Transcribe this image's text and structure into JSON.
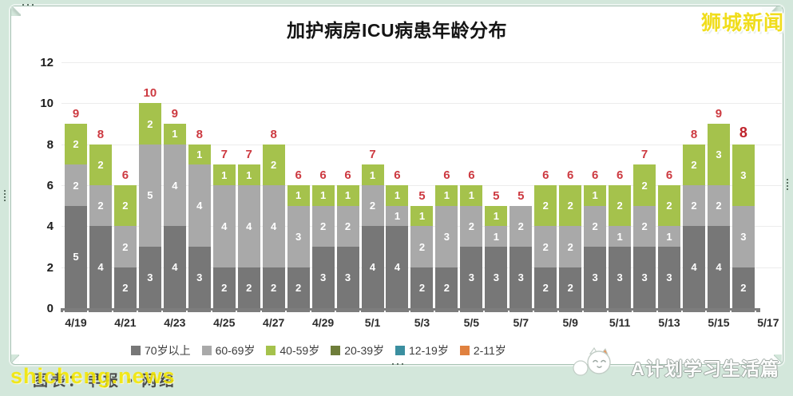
{
  "page": {
    "title": "加护病房ICU病患年龄分布",
    "brand": "狮城新闻",
    "watermark_site": "shicheng.news",
    "caption": "图表：早报 • 网络",
    "watermark_right": "A计划学习生活篇"
  },
  "chart_data": {
    "type": "bar",
    "stacked": true,
    "title": "加护病房ICU病患年龄分布",
    "grid": true,
    "legend_position": "bottom",
    "ylim": [
      0,
      12
    ],
    "yticks": [
      0,
      2,
      4,
      6,
      8,
      10,
      12
    ],
    "categories": [
      "4/19",
      "4/20",
      "4/21",
      "4/22",
      "4/23",
      "4/24",
      "4/25",
      "4/26",
      "4/27",
      "4/28",
      "4/29",
      "4/30",
      "5/1",
      "5/2",
      "5/3",
      "5/4",
      "5/5",
      "5/6",
      "5/7",
      "5/8",
      "5/9",
      "5/10",
      "5/11",
      "5/12",
      "5/13",
      "5/14",
      "5/15",
      "5/16"
    ],
    "x_tick_labels": [
      "4/19",
      "4/21",
      "4/23",
      "4/25",
      "4/27",
      "4/29",
      "5/1",
      "5/3",
      "5/5",
      "5/7",
      "5/9",
      "5/11",
      "5/13",
      "5/15",
      "5/17"
    ],
    "series": [
      {
        "name": "70岁以上",
        "color": "#777777",
        "values": [
          5,
          4,
          2,
          3,
          4,
          3,
          2,
          2,
          2,
          2,
          3,
          3,
          4,
          4,
          2,
          2,
          3,
          3,
          3,
          2,
          2,
          3,
          3,
          3,
          3,
          4,
          4,
          2
        ]
      },
      {
        "name": "60-69岁",
        "color": "#a9a9a9",
        "values": [
          2,
          2,
          2,
          5,
          4,
          4,
          4,
          4,
          4,
          3,
          2,
          2,
          2,
          1,
          2,
          3,
          2,
          1,
          2,
          2,
          2,
          2,
          1,
          2,
          1,
          2,
          2,
          3
        ]
      },
      {
        "name": "40-59岁",
        "color": "#a5c24c",
        "values": [
          2,
          2,
          2,
          2,
          1,
          1,
          1,
          1,
          2,
          1,
          1,
          1,
          1,
          1,
          1,
          1,
          1,
          1,
          0,
          2,
          2,
          1,
          2,
          2,
          2,
          2,
          3,
          3
        ]
      },
      {
        "name": "20-39岁",
        "color": "#6e7d3a",
        "values": [
          0,
          0,
          0,
          0,
          0,
          0,
          0,
          0,
          0,
          0,
          0,
          0,
          0,
          0,
          0,
          0,
          0,
          0,
          0,
          0,
          0,
          0,
          0,
          0,
          0,
          0,
          0,
          0
        ]
      },
      {
        "name": "12-19岁",
        "color": "#3b8fa0",
        "values": [
          0,
          0,
          0,
          0,
          0,
          0,
          0,
          0,
          0,
          0,
          0,
          0,
          0,
          0,
          0,
          0,
          0,
          0,
          0,
          0,
          0,
          0,
          0,
          0,
          0,
          0,
          0,
          0
        ]
      },
      {
        "name": "2-11岁",
        "color": "#e0813f",
        "values": [
          0,
          0,
          0,
          0,
          0,
          0,
          0,
          0,
          0,
          0,
          0,
          0,
          0,
          0,
          0,
          0,
          0,
          0,
          0,
          0,
          0,
          0,
          0,
          0,
          0,
          0,
          0,
          0
        ]
      }
    ],
    "totals": [
      9,
      8,
      6,
      10,
      9,
      8,
      7,
      7,
      8,
      6,
      6,
      6,
      7,
      6,
      5,
      6,
      6,
      5,
      5,
      6,
      6,
      6,
      6,
      7,
      6,
      8,
      9,
      8
    ],
    "total_label_color": "#cd3a41",
    "last_total_emphasized": true
  }
}
